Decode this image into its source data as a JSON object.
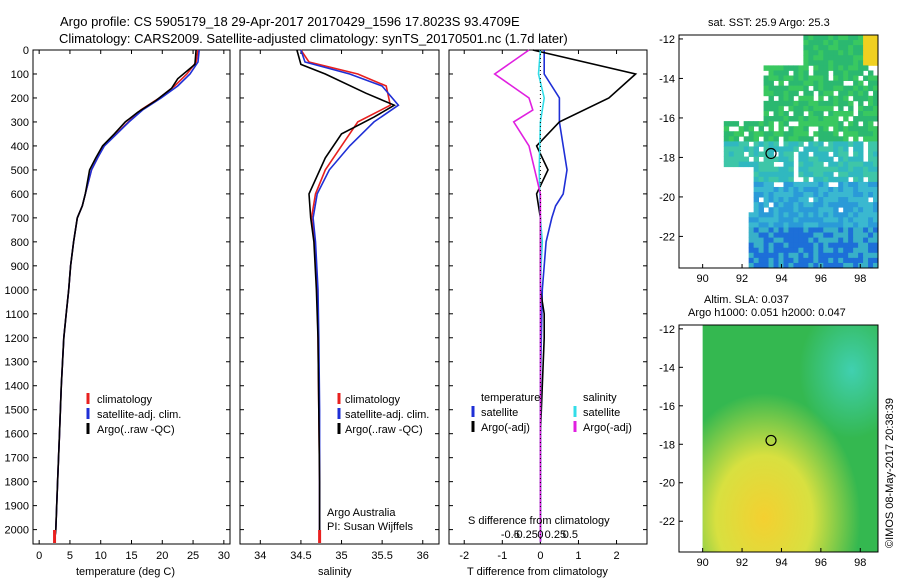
{
  "title": {
    "line1": "Argo profile: CS 5905179_18 29-Apr-2017 20170429_1596 17.8023S 93.4709E",
    "line2": "Climatology: CARS2009. Satellite-adjusted climatology: synTS_20170501.nc (1.7d later)"
  },
  "watermark": "©IMOS 08-May-2017 20:38:39",
  "colors": {
    "climatology": "#e8201f",
    "satellite": "#1f2fd6",
    "argo": "#000000",
    "sal_satellite": "#33dde8",
    "sal_argo": "#e020e0"
  },
  "chart_data": [
    {
      "id": "temperature",
      "type": "line",
      "xlabel": "temperature (deg C)",
      "ylabel": "",
      "xlim": [
        -1,
        31
      ],
      "ylim": [
        2060,
        0
      ],
      "xticks": [
        0,
        5,
        10,
        15,
        20,
        25,
        30
      ],
      "xtick_labels": [
        "0",
        "5",
        "10",
        "15",
        "20",
        "25",
        "30"
      ],
      "yticks": [
        0,
        100,
        200,
        300,
        400,
        500,
        600,
        700,
        800,
        900,
        1000,
        1100,
        1200,
        1300,
        1400,
        1500,
        1600,
        1700,
        1800,
        1900,
        2000
      ],
      "ytick_labels": [
        "0",
        "100",
        "200",
        "300",
        "400",
        "500",
        "600",
        "700",
        "800",
        "900",
        "1000",
        "1100",
        "1200",
        "1300",
        "1400",
        "1500",
        "1600",
        "1700",
        "1800",
        "1900",
        "2000"
      ],
      "legend": [
        "climatology",
        "satellite-adj. clim.",
        "Argo(..raw -QC)"
      ],
      "series": [
        {
          "name": "climatology",
          "color": "#e8201f",
          "x": [
            25.8,
            25.5,
            24.0,
            22.0,
            19.5,
            16.5,
            14.5,
            12.5,
            10.5,
            9.5,
            8.5,
            7.5,
            7.0,
            6.2,
            5.6,
            5.1,
            4.8,
            4.4,
            4.0,
            3.6,
            3.3,
            3.0,
            2.7,
            2.5
          ],
          "y": [
            0,
            50,
            100,
            150,
            200,
            250,
            300,
            350,
            400,
            450,
            500,
            600,
            650,
            700,
            800,
            900,
            1000,
            1100,
            1200,
            1400,
            1600,
            1800,
            2000,
            2050
          ]
        },
        {
          "name": "satellite-adj. clim.",
          "color": "#1f2fd6",
          "x": [
            26.0,
            25.8,
            24.5,
            22.5,
            19.8,
            16.8,
            14.6,
            12.6,
            10.6,
            9.5,
            8.5,
            7.5,
            7.0,
            6.2,
            5.6,
            5.1,
            4.8,
            4.4,
            4.0,
            3.6,
            3.3,
            3.0,
            2.7,
            2.5
          ],
          "y": [
            0,
            50,
            100,
            150,
            200,
            250,
            300,
            350,
            400,
            450,
            500,
            600,
            650,
            700,
            800,
            900,
            1000,
            1100,
            1200,
            1400,
            1600,
            1800,
            2000,
            2050
          ]
        },
        {
          "name": "Argo(..raw -QC)",
          "color": "#000000",
          "x": [
            25.5,
            25.3,
            22.5,
            21.5,
            19.0,
            16.0,
            14.0,
            12.2,
            10.3,
            9.2,
            8.2,
            7.5,
            7.0,
            6.2,
            5.6,
            5.1,
            4.8,
            4.4,
            4.0,
            3.6,
            3.3,
            3.0,
            2.7,
            2.5
          ],
          "y": [
            0,
            60,
            120,
            160,
            210,
            260,
            300,
            350,
            400,
            450,
            500,
            600,
            650,
            700,
            800,
            900,
            1000,
            1100,
            1200,
            1400,
            1600,
            1800,
            2000,
            2050
          ]
        }
      ]
    },
    {
      "id": "salinity",
      "type": "line",
      "xlabel": "salinity",
      "ylabel": "",
      "xlim": [
        33.75,
        36.2
      ],
      "ylim": [
        2060,
        0
      ],
      "xticks": [
        34,
        34.5,
        35,
        35.5,
        36
      ],
      "xtick_labels": [
        "34",
        "34.5",
        "35",
        "35.5",
        "36"
      ],
      "legend": [
        "climatology",
        "satellite-adj. clim.",
        "Argo(..raw -QC)"
      ],
      "annotation": [
        "Argo Australia",
        "PI: Susan Wijffels"
      ],
      "series": [
        {
          "name": "climatology",
          "color": "#e8201f",
          "x": [
            34.5,
            34.6,
            35.2,
            35.55,
            35.6,
            35.2,
            35.0,
            34.8,
            34.68,
            34.63,
            34.67,
            34.7,
            34.71,
            34.72,
            34.73,
            34.73
          ],
          "y": [
            0,
            50,
            100,
            150,
            230,
            300,
            400,
            500,
            600,
            700,
            800,
            1000,
            1200,
            1500,
            1800,
            2050
          ]
        },
        {
          "name": "satellite-adj. clim.",
          "color": "#1f2fd6",
          "x": [
            34.5,
            34.55,
            35.1,
            35.5,
            35.7,
            35.4,
            35.1,
            34.85,
            34.7,
            34.65,
            34.68,
            34.71,
            34.72,
            34.73,
            34.73,
            34.73
          ],
          "y": [
            0,
            50,
            100,
            150,
            230,
            300,
            400,
            500,
            600,
            700,
            800,
            1000,
            1200,
            1500,
            1800,
            2050
          ]
        },
        {
          "name": "Argo(..raw -QC)",
          "color": "#000000",
          "x": [
            34.45,
            34.5,
            34.8,
            35.3,
            35.65,
            35.4,
            35.0,
            34.8,
            34.6,
            34.62,
            34.66,
            34.69,
            34.71,
            34.72,
            34.73,
            34.73
          ],
          "y": [
            0,
            60,
            100,
            180,
            230,
            280,
            350,
            450,
            600,
            700,
            800,
            1000,
            1200,
            1500,
            1800,
            2050
          ]
        }
      ]
    },
    {
      "id": "differences",
      "type": "line",
      "xlabel": "T difference from climatology",
      "xlabel_top": "S difference from climatology",
      "xlim": [
        -2.4,
        2.8
      ],
      "ylim": [
        2060,
        0
      ],
      "xticks": [
        -2,
        -1,
        0,
        1,
        2
      ],
      "xtick_labels": [
        "-2",
        "-1",
        "0",
        "1",
        "2"
      ],
      "sticks": [
        -0.5,
        -0.25,
        0,
        0.25,
        0.5
      ],
      "stick_labels": [
        "-0.5",
        "-0.25",
        "0",
        "0.25",
        "0.5"
      ],
      "legend_titles": [
        "temperature",
        "salinity"
      ],
      "legend": [
        "satellite",
        "Argo(-adj)",
        "satellite",
        "Argo(-adj)"
      ],
      "series": [
        {
          "name": "T satellite",
          "color": "#1f2fd6",
          "x": [
            0.1,
            0.1,
            0.5,
            0.5,
            0.6,
            0.7,
            0.6,
            0.4,
            0.3,
            0.15,
            0.05,
            0.0,
            0.0,
            0.0
          ],
          "y": [
            0,
            100,
            200,
            300,
            400,
            500,
            600,
            650,
            700,
            800,
            1000,
            1400,
            1800,
            2050
          ]
        },
        {
          "name": "T Argo(-adj)",
          "color": "#000000",
          "x": [
            -0.2,
            2.5,
            1.8,
            0.5,
            -0.1,
            0.2,
            -0.1,
            0.0,
            0.0,
            0.0,
            0.1,
            0.1,
            0.0,
            0.0
          ],
          "y": [
            0,
            100,
            200,
            300,
            400,
            500,
            600,
            700,
            800,
            1000,
            1100,
            1200,
            1600,
            2050
          ]
        },
        {
          "name": "S satellite",
          "color": "#33dde8",
          "x": [
            0.0,
            -0.05,
            0.1,
            0.0,
            -0.03,
            0.0,
            0.05,
            0.02,
            0.0,
            0.0,
            0.0
          ],
          "y": [
            0,
            100,
            200,
            300,
            500,
            700,
            800,
            900,
            1000,
            1500,
            2050
          ]
        },
        {
          "name": "S Argo(-adj)",
          "color": "#e020e0",
          "x": [
            -0.3,
            -1.2,
            -0.3,
            -0.2,
            -0.7,
            -0.3,
            0.0,
            0.0,
            0.0
          ],
          "y": [
            0,
            100,
            200,
            250,
            300,
            400,
            600,
            900,
            2050
          ]
        }
      ]
    },
    {
      "id": "sst-map",
      "type": "heatmap",
      "title": "sat. SST: 25.9  Argo: 25.3",
      "xticks": [
        90,
        92,
        94,
        96,
        98
      ],
      "yticks": [
        -12,
        -14,
        -16,
        -18,
        -20,
        -22
      ],
      "marker": {
        "lon": 93.47,
        "lat": -17.8
      }
    },
    {
      "id": "sla-map",
      "type": "heatmap",
      "title_line1": "Altim. SLA: 0.037",
      "title_line2": "Argo h1000: 0.051 h2000: 0.047",
      "xticks": [
        90,
        92,
        94,
        96,
        98
      ],
      "yticks": [
        -12,
        -14,
        -16,
        -18,
        -20,
        -22
      ],
      "marker": {
        "lon": 93.47,
        "lat": -17.8
      }
    }
  ]
}
